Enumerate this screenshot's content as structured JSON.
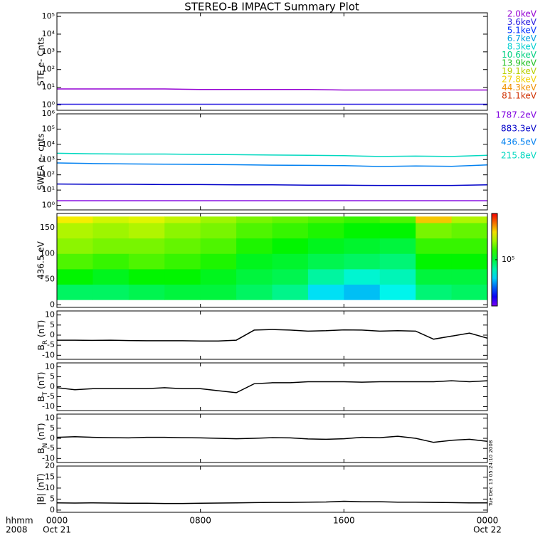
{
  "title": "STEREO-B IMPACT Summary Plot",
  "timestamp": "Tue Dec 13 05:24:10 2008",
  "x_axis": {
    "xlim": [
      0,
      24
    ],
    "xticks": [
      {
        "value": 0,
        "label": "0000"
      },
      {
        "value": 8,
        "label": "0800"
      },
      {
        "value": 16,
        "label": "1600"
      },
      {
        "value": 24,
        "label": "0000"
      }
    ],
    "dates": [
      {
        "value": 0,
        "label": "Oct 21"
      },
      {
        "value": 24,
        "label": "Oct 22"
      }
    ],
    "label": [
      "hhmm",
      "2008"
    ]
  },
  "chart_data": [
    {
      "type": "line",
      "ylabel": "STE e- Cnts",
      "log": true,
      "ylim": [
        0.5,
        160000
      ],
      "yticks": [
        {
          "value": 1,
          "label": "10⁰"
        },
        {
          "value": 10,
          "label": "10¹"
        },
        {
          "value": 100,
          "label": "10²"
        },
        {
          "value": 1000,
          "label": "10³"
        },
        {
          "value": 10000,
          "label": "10⁴"
        },
        {
          "value": 100000,
          "label": "10⁵"
        }
      ],
      "x": [
        0,
        2,
        4,
        6,
        8,
        10,
        12,
        14,
        16,
        18,
        20,
        22,
        24
      ],
      "series": [
        {
          "name": "2.0keV",
          "color": "#9400d3",
          "values": [
            8,
            8,
            8,
            8,
            7.5,
            7.5,
            7.5,
            7.5,
            7,
            7,
            7,
            7,
            7
          ]
        },
        {
          "name": "3.6keV",
          "color": "#2a1ee0",
          "values": [
            1.1,
            1.1,
            1.1,
            1.1,
            1.1,
            1.1,
            1.1,
            1.1,
            1.1,
            1.1,
            1.1,
            1.1,
            1.1
          ]
        },
        {
          "name": "5.1keV",
          "color": "#0030ff",
          "values": [
            null,
            null,
            null,
            null,
            null,
            null,
            null,
            null,
            null,
            null,
            null,
            null,
            null
          ]
        },
        {
          "name": "6.7keV",
          "color": "#00a0e0",
          "values": [
            null,
            null,
            null,
            null,
            null,
            null,
            null,
            null,
            null,
            null,
            null,
            null,
            null
          ]
        },
        {
          "name": "8.3keV",
          "color": "#00d0d0",
          "values": [
            null,
            null,
            null,
            null,
            null,
            null,
            null,
            null,
            null,
            null,
            null,
            null,
            null
          ]
        },
        {
          "name": "10.6keV",
          "color": "#00d080",
          "values": [
            null,
            null,
            null,
            null,
            null,
            null,
            null,
            null,
            null,
            null,
            null,
            null,
            null
          ]
        },
        {
          "name": "13.9keV",
          "color": "#20c020",
          "values": [
            null,
            null,
            null,
            null,
            null,
            null,
            null,
            null,
            null,
            null,
            null,
            null,
            null
          ]
        },
        {
          "name": "19.1keV",
          "color": "#b8d000",
          "values": [
            null,
            null,
            null,
            null,
            null,
            null,
            null,
            null,
            null,
            null,
            null,
            null,
            null
          ]
        },
        {
          "name": "27.8keV",
          "color": "#f0d000",
          "values": [
            null,
            null,
            null,
            null,
            null,
            null,
            null,
            null,
            null,
            null,
            null,
            null,
            null
          ]
        },
        {
          "name": "44.3keV",
          "color": "#f09000",
          "values": [
            null,
            null,
            null,
            null,
            null,
            null,
            null,
            null,
            null,
            null,
            null,
            null,
            null
          ]
        },
        {
          "name": "81.1keV",
          "color": "#d03000",
          "values": [
            null,
            null,
            null,
            null,
            null,
            null,
            null,
            null,
            null,
            null,
            null,
            null,
            null
          ]
        }
      ]
    },
    {
      "type": "line",
      "ylabel": "SWEA e- cnts",
      "log": true,
      "ylim": [
        0.5,
        1000000
      ],
      "yticks": [
        {
          "value": 1,
          "label": "10⁰"
        },
        {
          "value": 10,
          "label": "10¹"
        },
        {
          "value": 100,
          "label": "10²"
        },
        {
          "value": 1000,
          "label": "10³"
        },
        {
          "value": 10000,
          "label": "10⁴"
        },
        {
          "value": 100000,
          "label": "10⁵"
        },
        {
          "value": 1000000,
          "label": "10⁶"
        }
      ],
      "x": [
        0,
        2,
        4,
        6,
        8,
        10,
        12,
        14,
        16,
        18,
        20,
        22,
        24
      ],
      "series": [
        {
          "name": "1787.2eV",
          "color": "#8000e0",
          "values": [
            2,
            2,
            2,
            2,
            2,
            2,
            2,
            2,
            2,
            2,
            2,
            2,
            2
          ]
        },
        {
          "name": "883.3eV",
          "color": "#0000c8",
          "values": [
            25,
            24,
            24,
            23,
            23,
            22,
            22,
            21,
            21,
            20,
            20,
            20,
            22
          ]
        },
        {
          "name": "436.5eV",
          "color": "#0080f0",
          "values": [
            600,
            550,
            520,
            500,
            480,
            460,
            430,
            420,
            400,
            350,
            380,
            360,
            450
          ]
        },
        {
          "name": "215.8eV",
          "color": "#00d8c0",
          "values": [
            2600,
            2400,
            2300,
            2300,
            2200,
            2100,
            2000,
            1900,
            1800,
            1600,
            1700,
            1600,
            1900
          ]
        }
      ]
    },
    {
      "type": "heatmap",
      "ylabel": "436.5 eV",
      "ylim": [
        -5,
        178
      ],
      "yticks": [
        0,
        50,
        100,
        150
      ],
      "x_bins": [
        0,
        2,
        4,
        6,
        8,
        10,
        12,
        14,
        16,
        18,
        20,
        22,
        24
      ],
      "y_bins": [
        10,
        40,
        70,
        100,
        130,
        160,
        172
      ],
      "z": [
        [
          90000,
          120000,
          150000,
          180000,
          200000,
          250000
        ],
        [
          90000,
          110000,
          140000,
          170000,
          190000,
          220000
        ],
        [
          95000,
          120000,
          150000,
          170000,
          200000,
          230000
        ],
        [
          100000,
          120000,
          140000,
          160000,
          180000,
          210000
        ],
        [
          100000,
          110000,
          130000,
          150000,
          170000,
          190000
        ],
        [
          90000,
          100000,
          110000,
          130000,
          150000,
          170000
        ],
        [
          80000,
          95000,
          105000,
          120000,
          140000,
          160000
        ],
        [
          55000,
          75000,
          95000,
          110000,
          130000,
          150000
        ],
        [
          50000,
          65000,
          90000,
          105000,
          120000,
          140000
        ],
        [
          60000,
          70000,
          85000,
          100000,
          120000,
          150000
        ],
        [
          85000,
          100000,
          120000,
          140000,
          170000,
          280000
        ],
        [
          90000,
          100000,
          120000,
          140000,
          160000,
          200000
        ]
      ],
      "colorbar": {
        "zlim": [
          20000,
          500000
        ],
        "log": true,
        "ticks": [
          {
            "value": 100000,
            "label": "10⁵"
          }
        ]
      }
    },
    {
      "type": "line",
      "ylabel": [
        "B",
        "R",
        " (nT)"
      ],
      "ylim": [
        -12,
        12
      ],
      "yticks": [
        -10,
        -5,
        0,
        5,
        10
      ],
      "x": [
        0,
        1,
        2,
        3,
        4,
        5,
        6,
        7,
        8,
        9,
        10,
        11,
        12,
        13,
        14,
        15,
        16,
        17,
        18,
        19,
        20,
        21,
        22,
        23,
        24
      ],
      "series": [
        {
          "color": "#000000",
          "values": [
            -2.5,
            -2.5,
            -2.6,
            -2.5,
            -2.7,
            -2.8,
            -2.8,
            -2.8,
            -2.9,
            -2.9,
            -2.5,
            2.5,
            2.8,
            2.5,
            2.0,
            2.2,
            2.6,
            2.5,
            2.0,
            2.2,
            2.0,
            -2.0,
            -0.5,
            1.0,
            -1.5
          ]
        }
      ]
    },
    {
      "type": "line",
      "ylabel": [
        "B",
        "T",
        " (nT)"
      ],
      "ylim": [
        -12,
        12
      ],
      "yticks": [
        -10,
        -5,
        0,
        5,
        10
      ],
      "x": [
        0,
        1,
        2,
        3,
        4,
        5,
        6,
        7,
        8,
        9,
        10,
        11,
        12,
        13,
        14,
        15,
        16,
        17,
        18,
        19,
        20,
        21,
        22,
        23,
        24
      ],
      "series": [
        {
          "color": "#000000",
          "values": [
            -0.5,
            -1.5,
            -1,
            -1,
            -1,
            -1,
            -0.5,
            -1,
            -1,
            -2,
            -3,
            1.5,
            2,
            2,
            2.5,
            2.5,
            2.5,
            2.3,
            2.5,
            2.5,
            2.5,
            2.5,
            3,
            2.5,
            3
          ]
        }
      ]
    },
    {
      "type": "line",
      "ylabel": [
        "B",
        "N",
        " (nT)"
      ],
      "ylim": [
        -12,
        12
      ],
      "yticks": [
        -10,
        -5,
        0,
        5,
        10
      ],
      "x": [
        0,
        1,
        2,
        3,
        4,
        5,
        6,
        7,
        8,
        9,
        10,
        11,
        12,
        13,
        14,
        15,
        16,
        17,
        18,
        19,
        20,
        21,
        22,
        23,
        24
      ],
      "series": [
        {
          "color": "#000000",
          "values": [
            0.5,
            0.8,
            0.5,
            0.3,
            0.2,
            0.5,
            0.5,
            0.3,
            0.2,
            0,
            -0.2,
            0,
            0.3,
            0.2,
            -0.3,
            -0.5,
            -0.2,
            0.5,
            0.3,
            1,
            0,
            -2,
            -1,
            -0.5,
            -1.5
          ]
        }
      ]
    },
    {
      "type": "line",
      "ylabel": "|B| (nT)",
      "ylim": [
        -1,
        20
      ],
      "yticks": [
        0,
        5,
        10,
        15,
        20
      ],
      "x": [
        0,
        1,
        2,
        3,
        4,
        5,
        6,
        7,
        8,
        9,
        10,
        11,
        12,
        13,
        14,
        15,
        16,
        17,
        18,
        19,
        20,
        21,
        22,
        23,
        24
      ],
      "series": [
        {
          "color": "#000000",
          "values": [
            3.3,
            3.2,
            3.3,
            3.2,
            3.1,
            3.1,
            3.0,
            3.0,
            3.1,
            3.2,
            3.3,
            3.4,
            3.5,
            3.5,
            3.6,
            3.7,
            4.0,
            3.8,
            3.8,
            3.6,
            3.6,
            3.5,
            3.4,
            3.3,
            3.3
          ]
        }
      ]
    }
  ]
}
